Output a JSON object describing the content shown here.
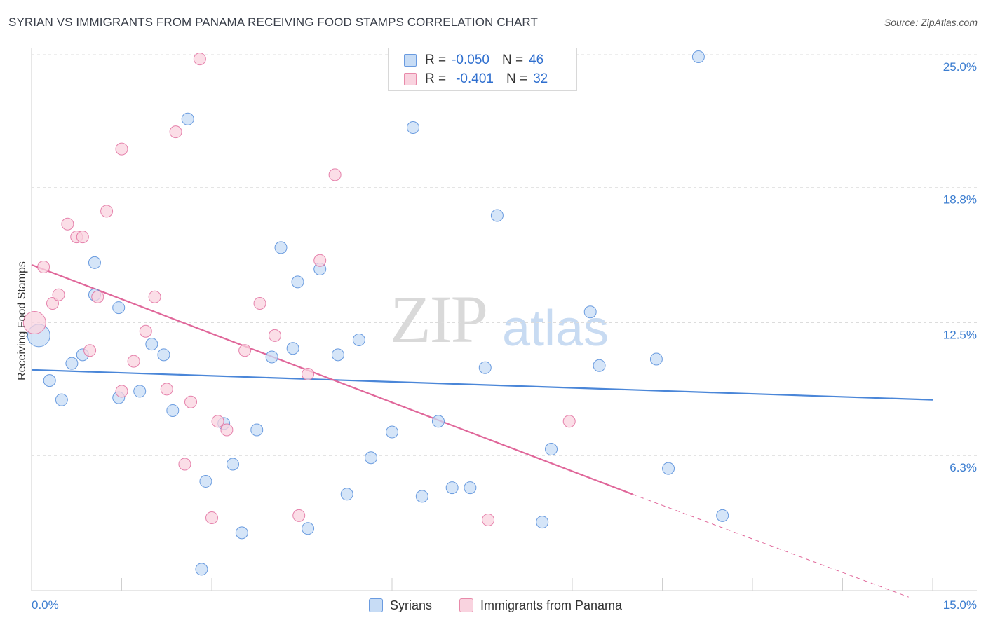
{
  "title": "SYRIAN VS IMMIGRANTS FROM PANAMA RECEIVING FOOD STAMPS CORRELATION CHART",
  "source": "Source: ZipAtlas.com",
  "watermark": {
    "zip": "ZIP",
    "atlas": "atlas"
  },
  "legend_top": {
    "rows": [
      {
        "r_label": "R =",
        "r_value": "-0.050",
        "n_label": "N =",
        "n_value": "46",
        "color": "#a8c8f0"
      },
      {
        "r_label": "R =",
        "r_value": "-0.401",
        "n_label": "N =",
        "n_value": "32",
        "color": "#f5b8cb"
      }
    ]
  },
  "legend_bottom": {
    "items": [
      {
        "label": "Syrians",
        "color": "#a8c8f0"
      },
      {
        "label": "Immigrants from Panama",
        "color": "#f5b8cb"
      }
    ]
  },
  "chart_data": {
    "type": "scatter",
    "title": "SYRIAN VS IMMIGRANTS FROM PANAMA RECEIVING FOOD STAMPS CORRELATION CHART",
    "xlabel": "",
    "ylabel": "Receiving Food Stamps",
    "xlim": [
      0,
      15
    ],
    "ylim": [
      0,
      25
    ],
    "x_tick_labels": [
      "0.0%",
      "15.0%"
    ],
    "y_ticks": [
      6.3,
      12.5,
      18.8,
      25.0
    ],
    "y_tick_labels": [
      "6.3%",
      "12.5%",
      "18.8%",
      "25.0%"
    ],
    "grid": true,
    "series": [
      {
        "name": "Syrians",
        "color": "#4a86d8",
        "fill": "#c7dcf5",
        "trend": {
          "x": [
            0,
            15
          ],
          "y": [
            10.3,
            8.9
          ]
        },
        "points": [
          {
            "x": 0.12,
            "y": 11.9,
            "big": true
          },
          {
            "x": 0.3,
            "y": 9.8
          },
          {
            "x": 0.5,
            "y": 8.9
          },
          {
            "x": 0.67,
            "y": 10.6
          },
          {
            "x": 0.85,
            "y": 11.0
          },
          {
            "x": 1.05,
            "y": 15.3
          },
          {
            "x": 1.05,
            "y": 13.8
          },
          {
            "x": 1.45,
            "y": 13.2
          },
          {
            "x": 1.45,
            "y": 9.0
          },
          {
            "x": 1.8,
            "y": 9.3
          },
          {
            "x": 2.0,
            "y": 11.5
          },
          {
            "x": 2.2,
            "y": 11.0
          },
          {
            "x": 2.35,
            "y": 8.4
          },
          {
            "x": 2.6,
            "y": 22.0
          },
          {
            "x": 2.83,
            "y": 1.0
          },
          {
            "x": 2.9,
            "y": 5.1
          },
          {
            "x": 3.2,
            "y": 7.8
          },
          {
            "x": 3.35,
            "y": 5.9
          },
          {
            "x": 3.5,
            "y": 2.7
          },
          {
            "x": 3.75,
            "y": 7.5
          },
          {
            "x": 4.0,
            "y": 10.9
          },
          {
            "x": 4.15,
            "y": 16.0
          },
          {
            "x": 4.35,
            "y": 11.3
          },
          {
            "x": 4.43,
            "y": 14.4
          },
          {
            "x": 4.6,
            "y": 2.9
          },
          {
            "x": 4.8,
            "y": 15.0
          },
          {
            "x": 5.1,
            "y": 11.0
          },
          {
            "x": 5.25,
            "y": 4.5
          },
          {
            "x": 5.45,
            "y": 11.7
          },
          {
            "x": 5.65,
            "y": 6.2
          },
          {
            "x": 6.0,
            "y": 7.4
          },
          {
            "x": 6.35,
            "y": 21.6
          },
          {
            "x": 6.5,
            "y": 4.4
          },
          {
            "x": 6.77,
            "y": 7.9
          },
          {
            "x": 7.0,
            "y": 4.8
          },
          {
            "x": 7.3,
            "y": 4.8
          },
          {
            "x": 7.55,
            "y": 10.4
          },
          {
            "x": 7.75,
            "y": 17.5
          },
          {
            "x": 8.5,
            "y": 3.2
          },
          {
            "x": 8.65,
            "y": 6.6
          },
          {
            "x": 9.3,
            "y": 13.0
          },
          {
            "x": 9.45,
            "y": 10.5
          },
          {
            "x": 10.4,
            "y": 10.8
          },
          {
            "x": 10.6,
            "y": 5.7
          },
          {
            "x": 11.1,
            "y": 24.9
          },
          {
            "x": 11.5,
            "y": 3.5
          }
        ]
      },
      {
        "name": "Immigrants from Panama",
        "color": "#e0679a",
        "fill": "#f9d3df",
        "trend": {
          "x": [
            0,
            10.0
          ],
          "y": [
            15.2,
            4.5
          ]
        },
        "trend_dashed": {
          "x": [
            10.0,
            14.6
          ],
          "y": [
            4.5,
            -0.3
          ]
        },
        "points": [
          {
            "x": 0.05,
            "y": 12.5,
            "big": true
          },
          {
            "x": 0.2,
            "y": 15.1
          },
          {
            "x": 0.35,
            "y": 13.4
          },
          {
            "x": 0.45,
            "y": 13.8
          },
          {
            "x": 0.6,
            "y": 17.1
          },
          {
            "x": 0.75,
            "y": 16.5
          },
          {
            "x": 0.85,
            "y": 16.5
          },
          {
            "x": 0.97,
            "y": 11.2
          },
          {
            "x": 1.1,
            "y": 13.7
          },
          {
            "x": 1.25,
            "y": 17.7
          },
          {
            "x": 1.5,
            "y": 20.6
          },
          {
            "x": 1.5,
            "y": 9.3
          },
          {
            "x": 1.7,
            "y": 10.7
          },
          {
            "x": 1.9,
            "y": 12.1
          },
          {
            "x": 2.05,
            "y": 13.7
          },
          {
            "x": 2.25,
            "y": 9.4
          },
          {
            "x": 2.4,
            "y": 21.4
          },
          {
            "x": 2.55,
            "y": 5.9
          },
          {
            "x": 2.65,
            "y": 8.8
          },
          {
            "x": 2.8,
            "y": 24.8
          },
          {
            "x": 3.0,
            "y": 3.4
          },
          {
            "x": 3.1,
            "y": 7.9
          },
          {
            "x": 3.25,
            "y": 7.5
          },
          {
            "x": 3.55,
            "y": 11.2
          },
          {
            "x": 3.8,
            "y": 13.4
          },
          {
            "x": 4.05,
            "y": 11.9
          },
          {
            "x": 4.45,
            "y": 3.5
          },
          {
            "x": 4.6,
            "y": 10.1
          },
          {
            "x": 4.8,
            "y": 15.4
          },
          {
            "x": 5.05,
            "y": 19.4
          },
          {
            "x": 7.6,
            "y": 3.3
          },
          {
            "x": 8.95,
            "y": 7.9
          }
        ]
      }
    ]
  }
}
